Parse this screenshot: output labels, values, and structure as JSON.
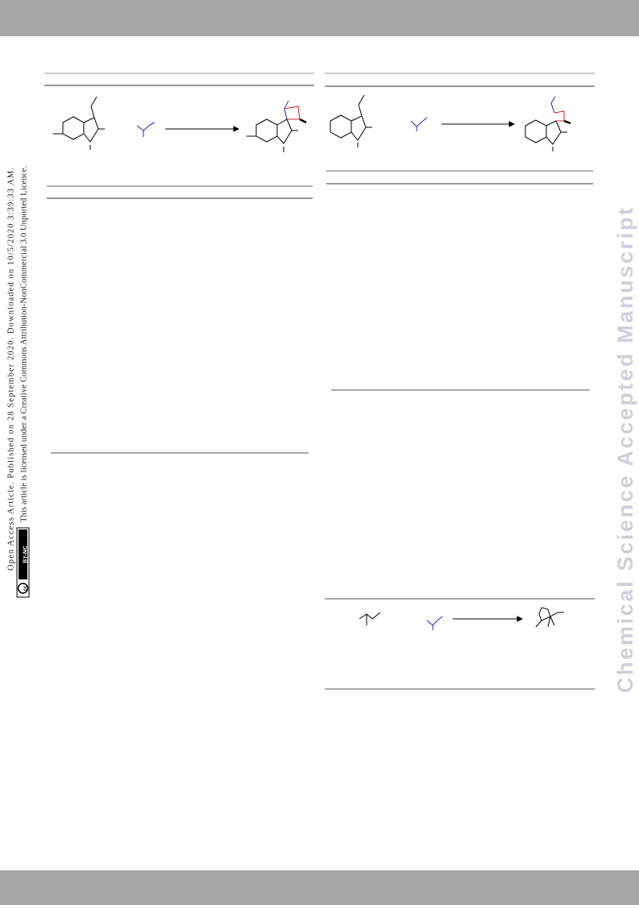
{
  "sidebar": {
    "line1": "Open Access Article. Published on 28 September 2020. Downloaded on 10/5/2020 3:39:33 AM.",
    "line2": "This article is licensed under a Creative Commons Attribution-NonCommercial 3.0 Unported Licence.",
    "badge_icon": "cc",
    "badge_text": "BY-NC"
  },
  "watermark": "Chemical Science Accepted Manuscript"
}
